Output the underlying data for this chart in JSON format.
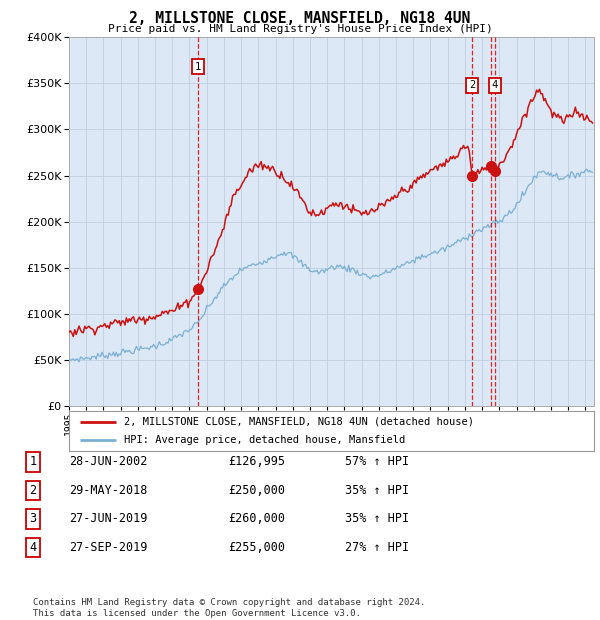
{
  "title": "2, MILLSTONE CLOSE, MANSFIELD, NG18 4UN",
  "subtitle": "Price paid vs. HM Land Registry's House Price Index (HPI)",
  "ylim": [
    0,
    400000
  ],
  "xlim_start": 1995.0,
  "xlim_end": 2025.5,
  "hpi_color": "#7bafd4",
  "price_color": "#cc1111",
  "bg_color": "#dce8f5",
  "grid_color": "#c0d0e0",
  "transactions": [
    {
      "num": 1,
      "date_num": 2002.49,
      "price": 126995
    },
    {
      "num": 2,
      "date_num": 2018.41,
      "price": 250000
    },
    {
      "num": 3,
      "date_num": 2019.49,
      "price": 260000
    },
    {
      "num": 4,
      "date_num": 2019.74,
      "price": 255000
    }
  ],
  "legend_line1": "2, MILLSTONE CLOSE, MANSFIELD, NG18 4UN (detached house)",
  "legend_line2": "HPI: Average price, detached house, Mansfield",
  "table_rows": [
    [
      "1",
      "28-JUN-2002",
      "£126,995",
      "57% ↑ HPI"
    ],
    [
      "2",
      "29-MAY-2018",
      "£250,000",
      "35% ↑ HPI"
    ],
    [
      "3",
      "27-JUN-2019",
      "£260,000",
      "35% ↑ HPI"
    ],
    [
      "4",
      "27-SEP-2019",
      "£255,000",
      "27% ↑ HPI"
    ]
  ],
  "footer1": "Contains HM Land Registry data © Crown copyright and database right 2024.",
  "footer2": "This data is licensed under the Open Government Licence v3.0.",
  "hpi_anchors": {
    "1995.0": 50000,
    "1996.0": 52000,
    "1997.0": 55000,
    "1998.0": 58000,
    "1999.0": 61000,
    "2000.0": 65000,
    "2001.0": 72000,
    "2002.0": 83000,
    "2002.5": 90000,
    "2003.0": 105000,
    "2004.0": 130000,
    "2005.0": 148000,
    "2006.0": 155000,
    "2007.0": 163000,
    "2007.5": 167000,
    "2008.0": 163000,
    "2008.5": 155000,
    "2009.0": 148000,
    "2009.5": 145000,
    "2010.0": 148000,
    "2010.5": 152000,
    "2011.0": 150000,
    "2011.5": 148000,
    "2012.0": 143000,
    "2012.5": 140000,
    "2013.0": 142000,
    "2013.5": 145000,
    "2014.0": 150000,
    "2014.5": 153000,
    "2015.0": 158000,
    "2015.5": 162000,
    "2016.0": 165000,
    "2016.5": 168000,
    "2017.0": 172000,
    "2017.5": 177000,
    "2018.0": 182000,
    "2018.5": 188000,
    "2019.0": 192000,
    "2019.5": 196000,
    "2020.0": 200000,
    "2020.5": 208000,
    "2021.0": 218000,
    "2021.5": 232000,
    "2022.0": 248000,
    "2022.5": 255000,
    "2023.0": 252000,
    "2023.5": 248000,
    "2024.0": 248000,
    "2024.5": 252000,
    "2025.0": 255000
  },
  "prop_anchors": {
    "1995.0": 80000,
    "1995.5": 82000,
    "1996.0": 84000,
    "1996.5": 85000,
    "1997.0": 87000,
    "1997.5": 89000,
    "1998.0": 91000,
    "1998.5": 93000,
    "1999.0": 94000,
    "1999.5": 96000,
    "2000.0": 98000,
    "2000.5": 101000,
    "2001.0": 103000,
    "2001.5": 108000,
    "2002.0": 115000,
    "2002.49": 126995,
    "2002.8": 138000,
    "2003.0": 148000,
    "2003.5": 170000,
    "2004.0": 195000,
    "2004.5": 225000,
    "2005.0": 240000,
    "2005.5": 255000,
    "2006.0": 262000,
    "2006.5": 260000,
    "2007.0": 255000,
    "2007.5": 248000,
    "2008.0": 238000,
    "2008.5": 225000,
    "2009.0": 210000,
    "2009.5": 208000,
    "2010.0": 215000,
    "2010.5": 220000,
    "2011.0": 218000,
    "2011.5": 212000,
    "2012.0": 208000,
    "2012.5": 210000,
    "2013.0": 215000,
    "2013.5": 220000,
    "2014.0": 228000,
    "2014.5": 235000,
    "2015.0": 240000,
    "2015.5": 248000,
    "2016.0": 255000,
    "2016.5": 260000,
    "2017.0": 265000,
    "2017.5": 272000,
    "2017.8": 278000,
    "2018.0": 282000,
    "2018.2": 283000,
    "2018.41": 250000,
    "2018.6": 252000,
    "2019.0": 255000,
    "2019.3": 258000,
    "2019.49": 260000,
    "2019.74": 255000,
    "2020.0": 262000,
    "2020.5": 275000,
    "2021.0": 295000,
    "2021.5": 318000,
    "2022.0": 335000,
    "2022.3": 345000,
    "2022.5": 338000,
    "2022.8": 328000,
    "2023.0": 318000,
    "2023.5": 312000,
    "2023.8": 308000,
    "2024.0": 312000,
    "2024.3": 318000,
    "2024.5": 322000,
    "2024.8": 315000,
    "2025.0": 312000
  }
}
